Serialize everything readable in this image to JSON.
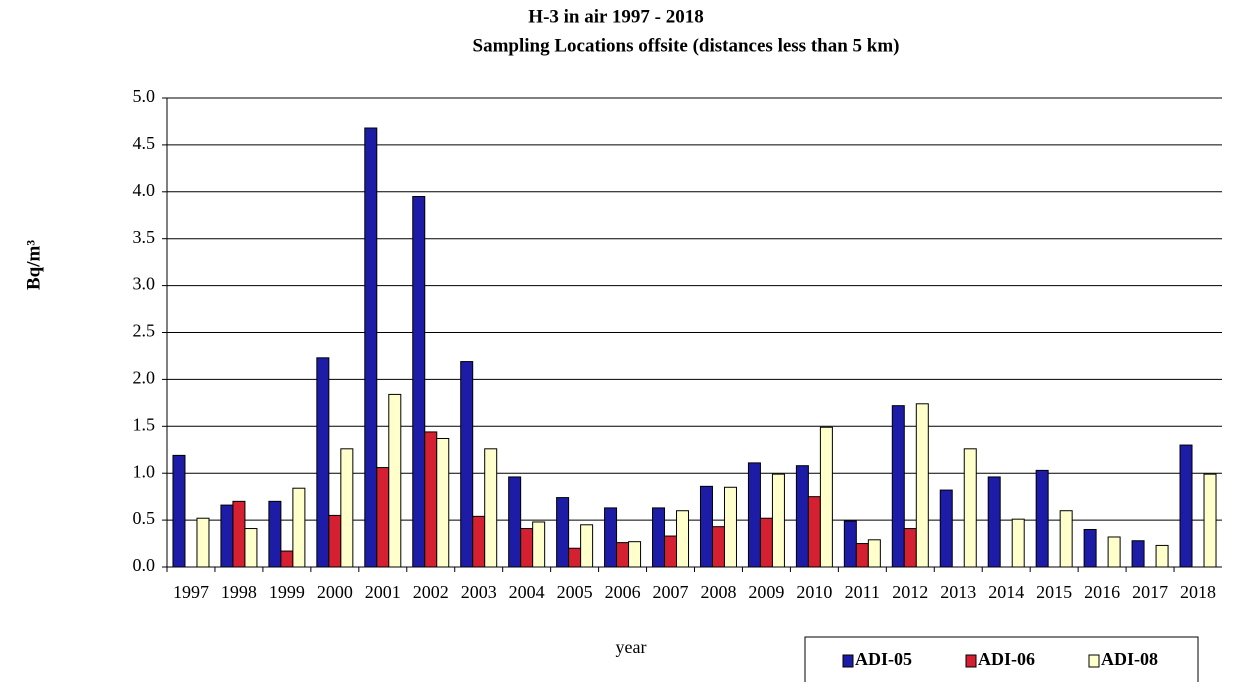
{
  "chart_data": {
    "type": "bar",
    "title": "H-3 in air  1997 - 2018",
    "subtitle": "Sampling  Locations offsite (distances less than 5 km)",
    "y_label": "Bq/m³",
    "x_label": "year",
    "categories": [
      "1997",
      "1998",
      "1999",
      "2000",
      "2001",
      "2002",
      "2003",
      "2004",
      "2005",
      "2006",
      "2007",
      "2008",
      "2009",
      "2010",
      "2011",
      "2012",
      "2013",
      "2014",
      "2015",
      "2016",
      "2017",
      "2018"
    ],
    "series": [
      {
        "name": "ADI-05",
        "color": "#1c1ca6",
        "values": [
          1.19,
          0.66,
          0.7,
          2.23,
          4.68,
          3.95,
          2.19,
          0.96,
          0.74,
          0.63,
          0.63,
          0.86,
          1.11,
          1.08,
          0.49,
          1.72,
          0.82,
          0.96,
          1.03,
          0.4,
          0.28,
          1.3
        ]
      },
      {
        "name": "ADI-06",
        "color": "#d42030",
        "values": [
          null,
          0.7,
          0.17,
          0.55,
          1.06,
          1.44,
          0.54,
          0.41,
          0.2,
          0.26,
          0.33,
          0.43,
          0.52,
          0.75,
          0.25,
          0.41,
          null,
          null,
          null,
          null,
          null,
          null
        ]
      },
      {
        "name": "ADI-08",
        "color": "#ffffcc",
        "values": [
          0.52,
          0.41,
          0.84,
          1.26,
          1.84,
          1.37,
          1.26,
          0.48,
          0.45,
          0.27,
          0.6,
          0.85,
          0.99,
          1.49,
          0.29,
          1.74,
          1.26,
          0.51,
          0.6,
          0.32,
          0.23,
          0.99
        ]
      }
    ],
    "ylim": [
      0,
      5
    ],
    "yticks": [
      {
        "value": 0,
        "label": "0.0"
      },
      0.5,
      {
        "value": 1,
        "label": "1.0"
      },
      1.5,
      {
        "value": 2,
        "label": "2.0"
      },
      2.5,
      {
        "value": 3,
        "label": "3.0"
      },
      3.5,
      {
        "value": 4,
        "label": "4.0"
      },
      4.5,
      {
        "value": 5,
        "label": "5.0"
      }
    ],
    "grid": true,
    "legend": "bottom-right"
  }
}
